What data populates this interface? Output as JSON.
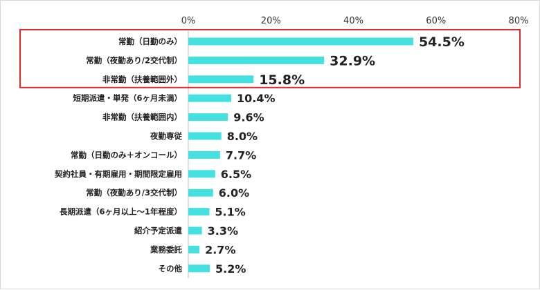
{
  "chart_data": {
    "type": "bar",
    "orientation": "horizontal",
    "title": "",
    "xlabel": "",
    "ylabel": "",
    "xlim": [
      0,
      80
    ],
    "xticks": [
      "0%",
      "20%",
      "40%",
      "60%",
      "80%"
    ],
    "xtick_values": [
      0,
      20,
      40,
      60,
      80
    ],
    "grid": false,
    "bar_color": "#45E0E0",
    "highlight_color": "#E02A2A",
    "highlighted_categories": [
      0,
      1,
      2
    ],
    "categories": [
      "常勤（日勤のみ）",
      "常勤（夜勤あり/2交代制）",
      "非常勤（扶養範囲外）",
      "短期派遣・単発（6ヶ月未満）",
      "非常勤（扶養範囲内）",
      "夜勤専従",
      "常勤（日勤のみ＋オンコール）",
      "契約社員・有期雇用・期間限定雇用",
      "常勤（夜勤あり/3交代制）",
      "長期派遣（6ヶ月以上〜1年程度）",
      "紹介予定派遣",
      "業務委託",
      "その他"
    ],
    "values": [
      54.5,
      32.9,
      15.8,
      10.4,
      9.6,
      8.0,
      7.7,
      6.5,
      6.0,
      5.1,
      3.3,
      2.7,
      5.2
    ],
    "value_labels": [
      "54.5%",
      "32.9%",
      "15.8%",
      "10.4%",
      "9.6%",
      "8.0%",
      "7.7%",
      "6.5%",
      "6.0%",
      "5.1%",
      "3.3%",
      "2.7%",
      "5.2%"
    ]
  }
}
